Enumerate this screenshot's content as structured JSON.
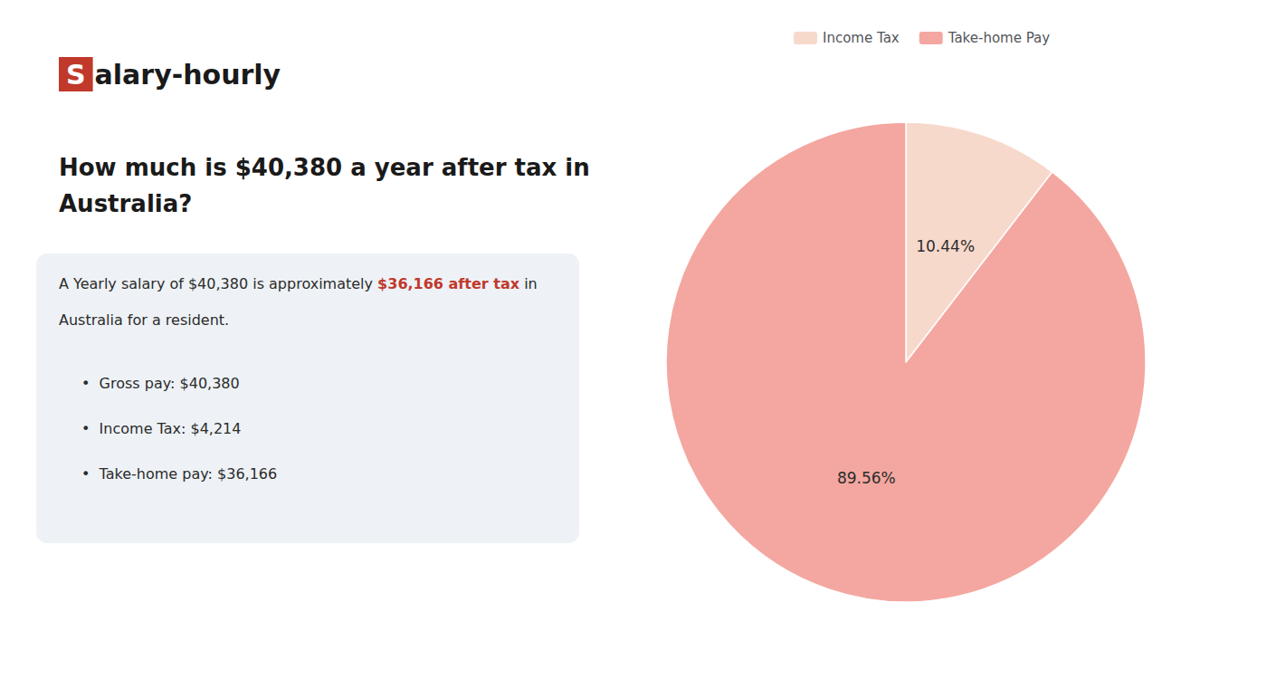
{
  "chart_data": {
    "type": "pie",
    "title": "How much is $40,380 a year after tax in\nAustralia?",
    "logo": {
      "text": [
        "S",
        "alary-hourly"
      ],
      "color": "#c0392b"
    },
    "annotations": [
      [
        {
          "text": "A Yearly salary of $40,380 is approximately "
        },
        {
          "text": "$36,166 after tax",
          "color": "#c0392b"
        },
        {
          "text": " in"
        }
      ],
      [
        {
          "text": "Australia for a resident."
        }
      ]
    ],
    "bullets": [
      "•  Gross pay: $40,380",
      "•  Income Tax: $4,214",
      "•  Take-home pay: $36,166"
    ],
    "categories": [
      "Income Tax",
      "Take-home Pay"
    ],
    "values": [
      10.44,
      89.56
    ],
    "value_labels": [
      "10.44%",
      "89.56%"
    ],
    "colors": [
      "#f7d9cc",
      "#f4a7a0"
    ],
    "data_labels": true,
    "legend": "top"
  }
}
